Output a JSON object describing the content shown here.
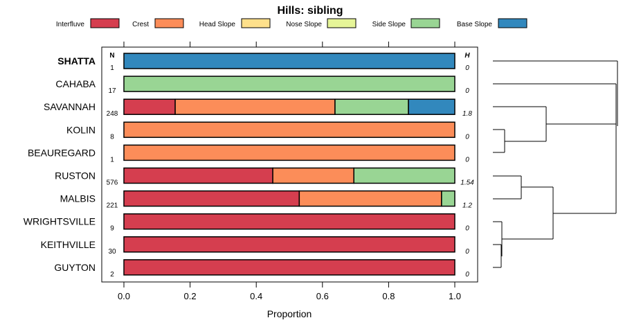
{
  "chart_data": {
    "type": "bar",
    "stacked": true,
    "orientation": "horizontal",
    "title": "Hills: sibling",
    "xlabel": "Proportion",
    "ylabel": "",
    "xlim": [
      0,
      1
    ],
    "x_ticks": [
      "0.0",
      "0.2",
      "0.4",
      "0.6",
      "0.8",
      "1.0"
    ],
    "x_tick_values": [
      0,
      0.2,
      0.4,
      0.6,
      0.8,
      1.0
    ],
    "legend_position": "top",
    "grid": false,
    "n_header": "N",
    "h_header": "H",
    "legend": [
      {
        "name": "Interfluve",
        "color": "#D53E4F"
      },
      {
        "name": "Crest",
        "color": "#FC8D59"
      },
      {
        "name": "Head Slope",
        "color": "#FEE08B"
      },
      {
        "name": "Nose Slope",
        "color": "#E6F598"
      },
      {
        "name": "Side Slope",
        "color": "#99D594"
      },
      {
        "name": "Base Slope",
        "color": "#3288BD"
      }
    ],
    "categories": [
      "SHATTA",
      "CAHABA",
      "SAVANNAH",
      "KOLIN",
      "BEAUREGARD",
      "RUSTON",
      "MALBIS",
      "WRIGHTSVILLE",
      "KEITHVILLE",
      "GUYTON"
    ],
    "bold_category": "SHATTA",
    "n": [
      "1",
      "17",
      "248",
      "8",
      "1",
      "576",
      "221",
      "9",
      "30",
      "2"
    ],
    "h": [
      "0",
      "0",
      "1.8",
      "0",
      "0",
      "1.54",
      "1.2",
      "0",
      "0",
      "0"
    ],
    "series": [
      {
        "name": "Interfluve",
        "values": [
          0,
          0,
          0.155,
          0,
          0,
          0.45,
          0.53,
          1,
          1,
          1
        ]
      },
      {
        "name": "Crest",
        "values": [
          0,
          0,
          0.483,
          1,
          1,
          0.245,
          0.43,
          0,
          0,
          0
        ]
      },
      {
        "name": "Head Slope",
        "values": [
          0,
          0,
          0,
          0,
          0,
          0,
          0,
          0,
          0,
          0
        ]
      },
      {
        "name": "Nose Slope",
        "values": [
          0,
          0,
          0,
          0,
          0,
          0,
          0,
          0,
          0,
          0
        ]
      },
      {
        "name": "Side Slope",
        "values": [
          0,
          1,
          0.222,
          0,
          0,
          0.305,
          0.04,
          0,
          0,
          0
        ]
      },
      {
        "name": "Base Slope",
        "values": [
          1,
          0,
          0.14,
          0,
          0,
          0,
          0,
          0,
          0,
          0
        ]
      }
    ]
  }
}
